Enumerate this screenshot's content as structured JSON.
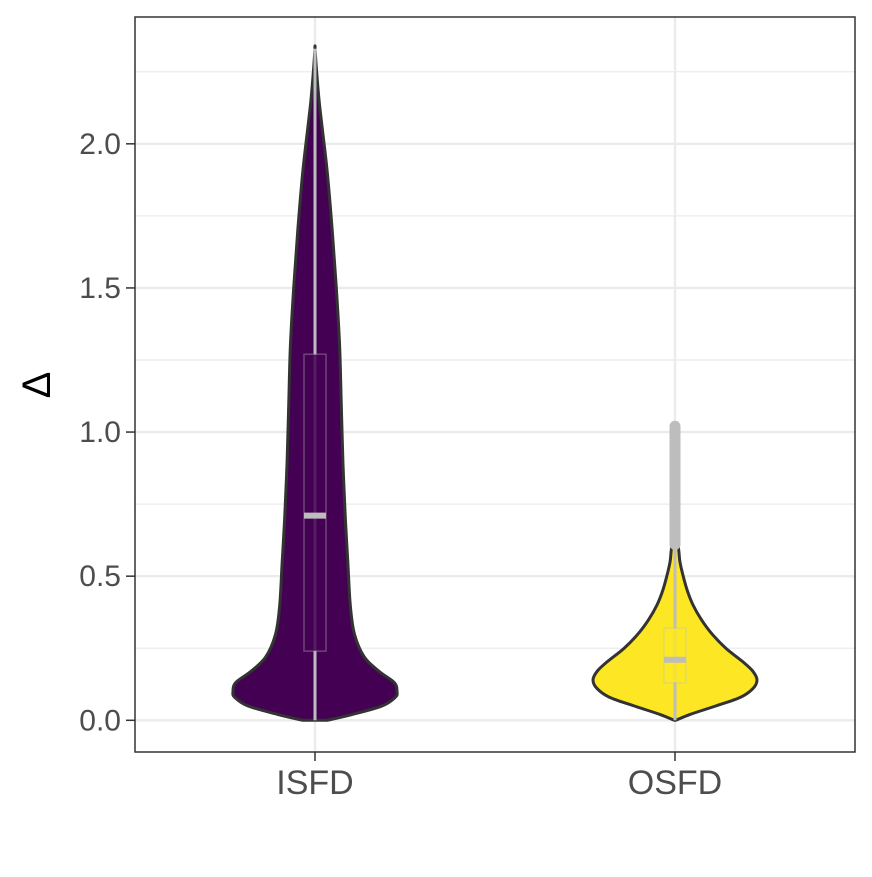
{
  "chart_data": {
    "type": "violin",
    "xlabel": "",
    "ylabel": "Δ",
    "ylim": [
      -0.11,
      2.44
    ],
    "yticks": [
      0.0,
      0.5,
      1.0,
      1.5,
      2.0
    ],
    "ytick_labels": [
      "0.0",
      "0.5",
      "1.0",
      "1.5",
      "2.0"
    ],
    "categories": [
      "ISFD",
      "OSFD"
    ],
    "grid": true,
    "legend": "none",
    "colors": {
      "ISFD": "#440154",
      "OSFD": "#fde725",
      "grid": "#ebebeb",
      "outline": "#333333",
      "boxplot": "#bdbdbd"
    },
    "series": [
      {
        "category": "ISFD",
        "min": 0.0,
        "q1": 0.24,
        "median": 0.71,
        "q3": 1.27,
        "max": 2.33,
        "outliers": [],
        "density": [
          [
            0.0,
            0.15
          ],
          [
            0.02,
            0.45
          ],
          [
            0.05,
            0.82
          ],
          [
            0.08,
            0.98
          ],
          [
            0.1,
            1.0
          ],
          [
            0.13,
            0.97
          ],
          [
            0.17,
            0.78
          ],
          [
            0.22,
            0.6
          ],
          [
            0.3,
            0.48
          ],
          [
            0.4,
            0.43
          ],
          [
            0.55,
            0.4
          ],
          [
            0.7,
            0.37
          ],
          [
            0.9,
            0.34
          ],
          [
            1.1,
            0.32
          ],
          [
            1.3,
            0.3
          ],
          [
            1.5,
            0.26
          ],
          [
            1.7,
            0.21
          ],
          [
            1.9,
            0.15
          ],
          [
            2.05,
            0.09
          ],
          [
            2.15,
            0.05
          ],
          [
            2.25,
            0.02
          ],
          [
            2.33,
            0.0
          ]
        ]
      },
      {
        "category": "OSFD",
        "min": 0.0,
        "q1": 0.13,
        "median": 0.21,
        "q3": 0.32,
        "max": 0.61,
        "outliers_range": [
          0.61,
          1.02
        ],
        "density": [
          [
            0.0,
            0.01
          ],
          [
            0.02,
            0.18
          ],
          [
            0.05,
            0.5
          ],
          [
            0.08,
            0.8
          ],
          [
            0.11,
            0.95
          ],
          [
            0.14,
            1.0
          ],
          [
            0.17,
            0.95
          ],
          [
            0.2,
            0.84
          ],
          [
            0.25,
            0.62
          ],
          [
            0.3,
            0.45
          ],
          [
            0.35,
            0.32
          ],
          [
            0.4,
            0.22
          ],
          [
            0.45,
            0.15
          ],
          [
            0.5,
            0.1
          ],
          [
            0.55,
            0.06
          ],
          [
            0.6,
            0.04
          ],
          [
            0.61,
            0.0
          ]
        ]
      }
    ]
  }
}
